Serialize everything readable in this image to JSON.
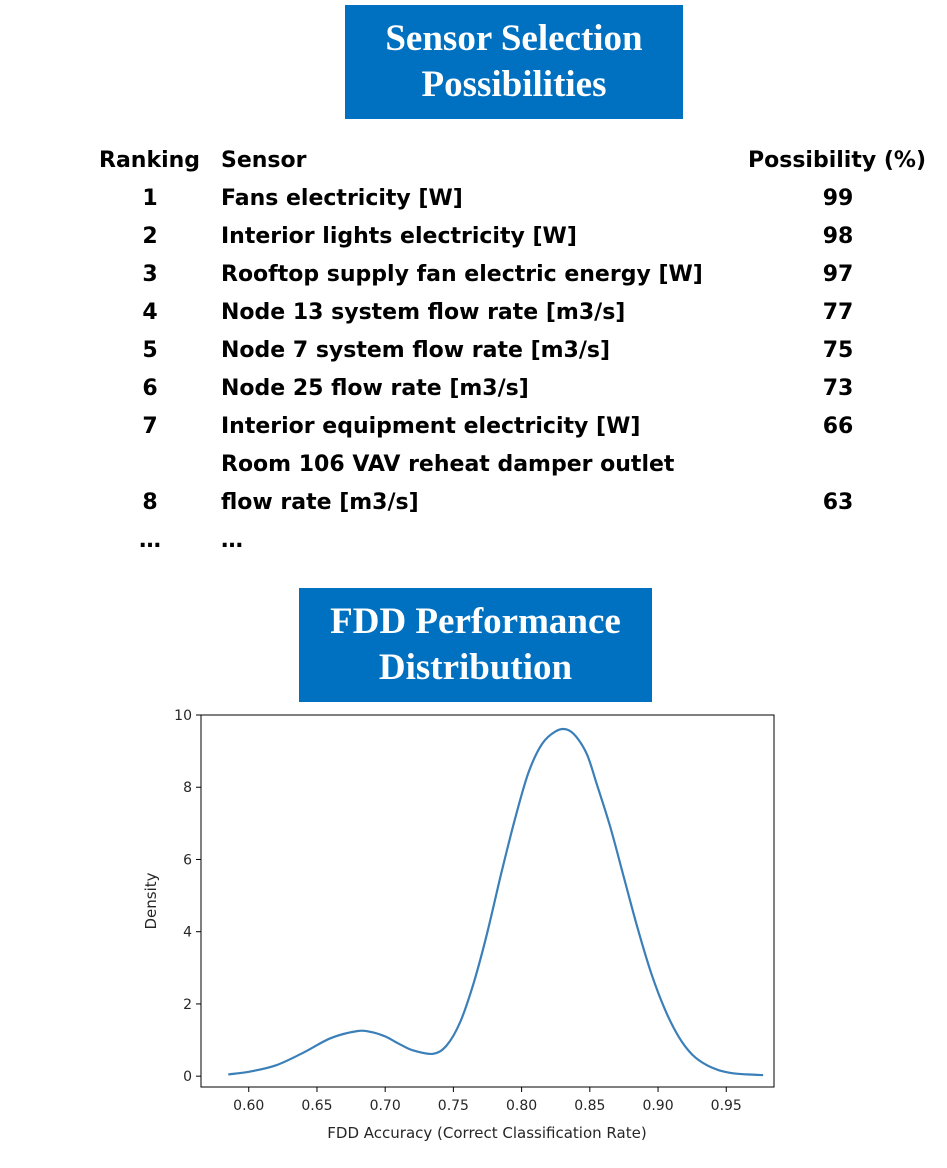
{
  "banner_top": {
    "line1": "Sensor Selection",
    "line2": "Possibilities"
  },
  "table": {
    "headers": {
      "ranking": "Ranking",
      "sensor": "Sensor",
      "possibility": "Possibility (%)"
    },
    "rows": [
      {
        "rank": "1",
        "sensor": "Fans electricity [W]",
        "possibility": "99"
      },
      {
        "rank": "2",
        "sensor": "Interior lights electricity [W]",
        "possibility": "98"
      },
      {
        "rank": "3",
        "sensor": "Rooftop supply fan electric energy [W]",
        "possibility": "97"
      },
      {
        "rank": "4",
        "sensor": "Node 13 system flow rate [m3/s]",
        "possibility": "77"
      },
      {
        "rank": "5",
        "sensor": "Node 7 system flow rate [m3/s]",
        "possibility": "75"
      },
      {
        "rank": "6",
        "sensor": "Node 25 flow rate [m3/s]",
        "possibility": "73"
      },
      {
        "rank": "7",
        "sensor": "Interior equipment electricity [W]",
        "possibility": "66"
      },
      {
        "rank": "",
        "sensor": "Room 106 VAV reheat damper outlet",
        "possibility": ""
      },
      {
        "rank": "8",
        "sensor": "flow rate [m3/s]",
        "possibility": "63"
      },
      {
        "rank": "…",
        "sensor": "…",
        "possibility": ""
      }
    ]
  },
  "banner_bottom": {
    "line1": "FDD Performance",
    "line2": "Distribution"
  },
  "chart_data": {
    "type": "line",
    "title": "",
    "xlabel": "FDD Accuracy (Correct Classification Rate)",
    "ylabel": "Density",
    "xlim": [
      0.565,
      0.985
    ],
    "ylim": [
      -0.3,
      10.0
    ],
    "xticks": [
      "0.60",
      "0.65",
      "0.70",
      "0.75",
      "0.80",
      "0.85",
      "0.90",
      "0.95"
    ],
    "yticks": [
      "0",
      "2",
      "4",
      "6",
      "8",
      "10"
    ],
    "grid": false,
    "color": "#3b7fb9",
    "series": [
      {
        "x": [
          0.585,
          0.6,
          0.62,
          0.64,
          0.66,
          0.68,
          0.69,
          0.7,
          0.71,
          0.72,
          0.735,
          0.745,
          0.755,
          0.765,
          0.775,
          0.785,
          0.795,
          0.805,
          0.815,
          0.825,
          0.833,
          0.84,
          0.848,
          0.855,
          0.865,
          0.875,
          0.885,
          0.895,
          0.905,
          0.915,
          0.925,
          0.935,
          0.945,
          0.955,
          0.965,
          0.977
        ],
        "y": [
          0.05,
          0.12,
          0.3,
          0.65,
          1.05,
          1.25,
          1.22,
          1.1,
          0.9,
          0.72,
          0.62,
          0.85,
          1.5,
          2.6,
          4.0,
          5.6,
          7.1,
          8.4,
          9.2,
          9.55,
          9.6,
          9.4,
          8.9,
          8.1,
          6.9,
          5.5,
          4.1,
          2.85,
          1.85,
          1.1,
          0.6,
          0.32,
          0.16,
          0.08,
          0.05,
          0.03
        ]
      }
    ]
  }
}
